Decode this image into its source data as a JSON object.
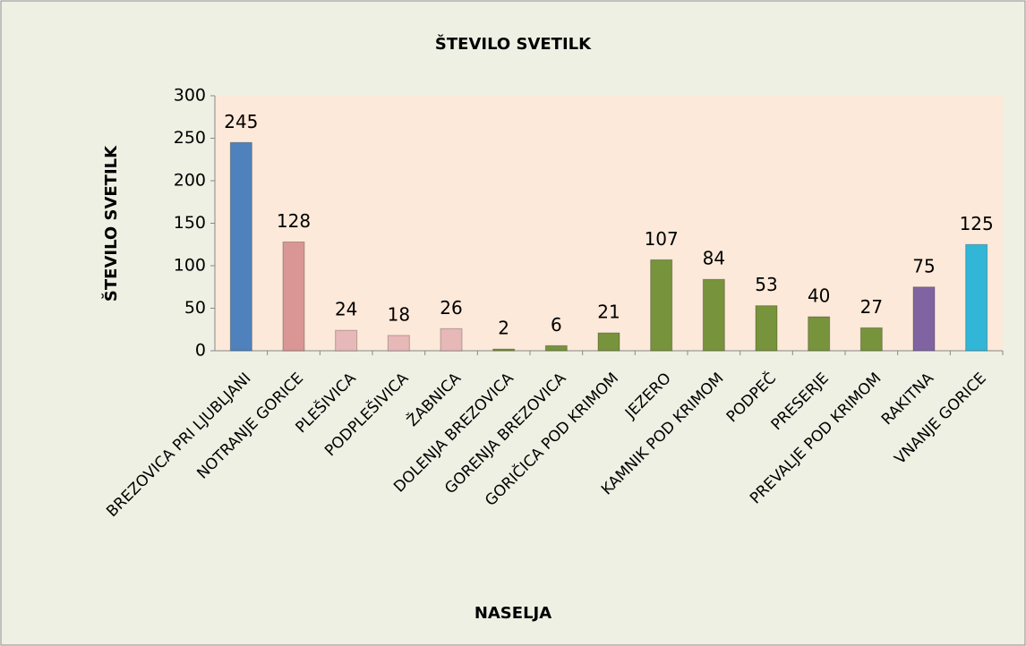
{
  "chart_data": {
    "type": "bar",
    "title": "ŠTEVILO SVETILK",
    "x_label": "NASELJA",
    "y_label": "ŠTEVILO SVETILK",
    "categories": [
      "BREZOVICA PRI LJUBLJANI",
      "NOTRANJE GORICE",
      "PLEŠIVICA",
      "PODPLEŠIVICA",
      "ŽABNICA",
      "DOLENJA BREZOVICA",
      "GORENJA BREZOVICA",
      "GORIČICA POD KRIMOM",
      "JEZERO",
      "KAMNIK POD KRIMOM",
      "PODPEČ",
      "PRESERJE",
      "PREVALJE POD KRIMOM",
      "RAKITNA",
      "VNANJE GORICE"
    ],
    "values": [
      245,
      128,
      24,
      18,
      26,
      2,
      6,
      21,
      107,
      84,
      53,
      40,
      27,
      75,
      125
    ],
    "colors": [
      "#4f81bd",
      "#d99694",
      "#e6b9b8",
      "#e6b9b8",
      "#e6b9b8",
      "#77933c",
      "#77933c",
      "#77933c",
      "#77933c",
      "#77933c",
      "#77933c",
      "#77933c",
      "#77933c",
      "#8064a2",
      "#31b6d8"
    ],
    "ylim": [
      0,
      300
    ],
    "yticks": [
      0,
      50,
      100,
      150,
      200,
      250,
      300
    ]
  }
}
